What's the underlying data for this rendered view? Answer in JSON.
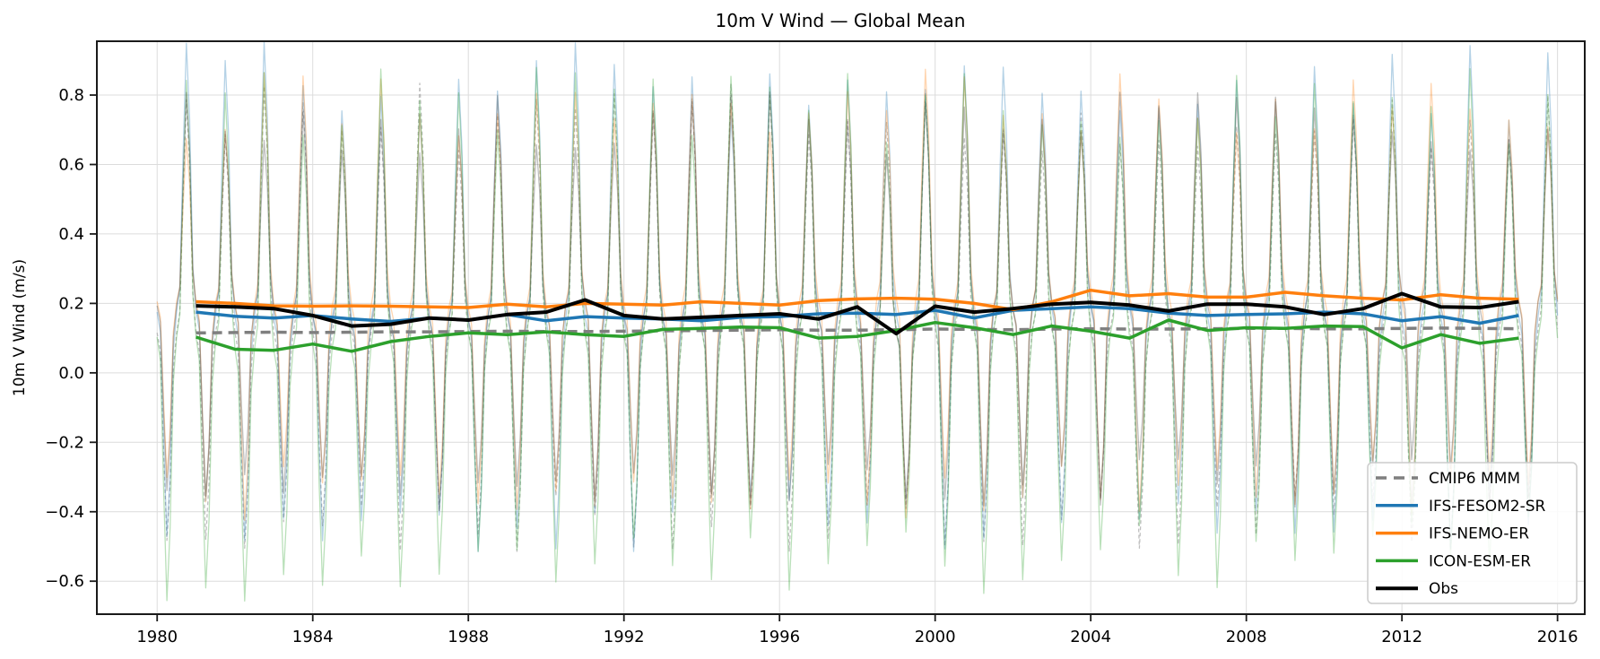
{
  "chart_data": {
    "type": "line",
    "title": "10m V Wind — Global Mean",
    "xlabel": "",
    "ylabel": "10m V Wind (m/s)",
    "xlim": [
      1978.45,
      2016.7
    ],
    "ylim": [
      -0.695,
      0.955
    ],
    "grid": true,
    "legend_position": "lower right",
    "x_ticks": [
      1980,
      1984,
      1988,
      1992,
      1996,
      2000,
      2004,
      2008,
      2012,
      2016
    ],
    "x_tick_labels": [
      "1980",
      "1984",
      "1988",
      "1992",
      "1996",
      "2000",
      "2004",
      "2008",
      "2012",
      "2016"
    ],
    "y_ticks": [
      0.8,
      0.6,
      0.4,
      0.2,
      0.0,
      -0.2,
      -0.4,
      -0.6
    ],
    "y_tick_labels": [
      "0.8",
      "0.6",
      "0.4",
      "0.2",
      "0.0",
      "−0.2",
      "−0.4",
      "−0.6"
    ],
    "annual_years_start": 1981,
    "annual_years_end": 2015,
    "series": [
      {
        "name": "CMIP6 MMM",
        "color": "#7f7f7f",
        "dash": "dashed",
        "width": 3.5,
        "values": [
          0.115,
          0.116,
          0.117,
          0.116,
          0.117,
          0.118,
          0.118,
          0.119,
          0.12,
          0.119,
          0.119,
          0.12,
          0.121,
          0.122,
          0.123,
          0.124,
          0.123,
          0.123,
          0.124,
          0.126,
          0.125,
          0.124,
          0.126,
          0.127,
          0.126,
          0.126,
          0.127,
          0.128,
          0.128,
          0.127,
          0.127,
          0.128,
          0.129,
          0.128,
          0.127
        ]
      },
      {
        "name": "IFS-FESOM2-SR",
        "color": "#1f77b4",
        "dash": "solid",
        "width": 3.5,
        "values": [
          0.175,
          0.163,
          0.158,
          0.165,
          0.155,
          0.148,
          0.158,
          0.152,
          0.168,
          0.15,
          0.162,
          0.158,
          0.155,
          0.15,
          0.16,
          0.162,
          0.17,
          0.172,
          0.168,
          0.18,
          0.158,
          0.18,
          0.185,
          0.19,
          0.185,
          0.172,
          0.165,
          0.168,
          0.17,
          0.175,
          0.17,
          0.15,
          0.162,
          0.143,
          0.165
        ]
      },
      {
        "name": "IFS-NEMO-ER",
        "color": "#ff7f0e",
        "dash": "solid",
        "width": 3.5,
        "values": [
          0.205,
          0.2,
          0.193,
          0.192,
          0.193,
          0.192,
          0.19,
          0.188,
          0.198,
          0.19,
          0.2,
          0.198,
          0.195,
          0.205,
          0.2,
          0.195,
          0.208,
          0.213,
          0.215,
          0.212,
          0.2,
          0.182,
          0.205,
          0.238,
          0.222,
          0.228,
          0.218,
          0.218,
          0.232,
          0.222,
          0.215,
          0.21,
          0.225,
          0.215,
          0.212
        ]
      },
      {
        "name": "ICON-ESM-ER",
        "color": "#2ca02c",
        "dash": "solid",
        "width": 3.5,
        "values": [
          0.103,
          0.068,
          0.065,
          0.083,
          0.062,
          0.09,
          0.105,
          0.115,
          0.11,
          0.118,
          0.11,
          0.105,
          0.125,
          0.128,
          0.132,
          0.13,
          0.1,
          0.105,
          0.122,
          0.145,
          0.13,
          0.11,
          0.135,
          0.12,
          0.1,
          0.152,
          0.122,
          0.13,
          0.128,
          0.135,
          0.133,
          0.072,
          0.11,
          0.085,
          0.1
        ]
      },
      {
        "name": "Obs",
        "color": "#000000",
        "dash": "solid",
        "width": 4,
        "values": [
          0.193,
          0.19,
          0.185,
          0.165,
          0.135,
          0.14,
          0.158,
          0.152,
          0.168,
          0.175,
          0.21,
          0.165,
          0.155,
          0.16,
          0.165,
          0.17,
          0.155,
          0.19,
          0.113,
          0.192,
          0.175,
          0.185,
          0.198,
          0.203,
          0.195,
          0.178,
          0.198,
          0.198,
          0.19,
          0.168,
          0.185,
          0.228,
          0.19,
          0.188,
          0.205
        ]
      }
    ],
    "seasonal_overlay": {
      "note": "thin faint monthly lines showing the annual cycle for each model/obs, 1980-2016; sharp peaks near October of each year, troughs near March",
      "alpha": 0.33,
      "peak_phase": 0.76,
      "x_start": 1980.0,
      "x_end": 2016.0,
      "series": [
        {
          "name": "CMIP6 MMM",
          "color": "#aaaaaa",
          "dash": "dashed",
          "peak": 0.73,
          "trough_start": -0.44,
          "trough_end": -0.44
        },
        {
          "name": "IFS-FESOM2-SR",
          "color": "#1f77b4",
          "dash": "solid",
          "peak": 0.84,
          "trough_start": -0.45,
          "trough_end": -0.42
        },
        {
          "name": "IFS-NEMO-ER",
          "color": "#ff7f0e",
          "dash": "solid",
          "peak": 0.78,
          "trough_start": -0.35,
          "trough_end": -0.33
        },
        {
          "name": "ICON-ESM-ER",
          "color": "#2ca02c",
          "dash": "solid",
          "peak": 0.77,
          "trough_start": -0.61,
          "trough_end": -0.5
        },
        {
          "name": "Obs",
          "color": "#3a3a3a",
          "dash": "solid",
          "peak": 0.73,
          "trough_start": -0.33,
          "trough_end": -0.32
        }
      ]
    },
    "legend_entries": [
      "CMIP6 MMM",
      "IFS-FESOM2-SR",
      "IFS-NEMO-ER",
      "ICON-ESM-ER",
      "Obs"
    ],
    "style": {
      "grid_color": "#dcdcdc",
      "spine_color": "#1a1a1a",
      "legend_border_color": "#cccccc",
      "legend_background": "rgba(255,255,255,0.85)"
    }
  }
}
